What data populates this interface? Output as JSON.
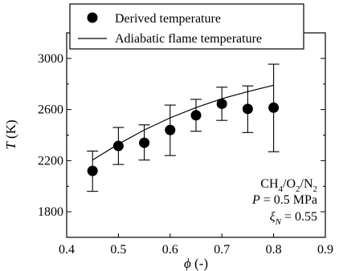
{
  "chart_data": {
    "type": "scatter",
    "xlabel": {
      "symbol": "ϕ",
      "unit": " (-)"
    },
    "ylabel": {
      "symbol": "T",
      "unit": " (K)"
    },
    "xlim": [
      0.4,
      0.9
    ],
    "ylim": [
      1600,
      3200
    ],
    "xticks": [
      0.4,
      0.5,
      0.6,
      0.7,
      0.8,
      0.9
    ],
    "xtick_labels": [
      "0.4",
      "0.5",
      "0.6",
      "0.7",
      "0.8",
      "0.9"
    ],
    "yticks": [
      1800,
      2200,
      2600,
      3000
    ],
    "ytick_labels": [
      "1800",
      "2200",
      "2600",
      "3000"
    ],
    "grid": false,
    "legend_position": "top",
    "series": [
      {
        "name": "Derived temperature",
        "kind": "points_with_errorbars",
        "x": [
          0.45,
          0.5,
          0.55,
          0.6,
          0.65,
          0.7,
          0.75,
          0.8
        ],
        "y": [
          2120,
          2315,
          2340,
          2440,
          2555,
          2645,
          2605,
          2615
        ],
        "y_low": [
          1960,
          2170,
          2205,
          2240,
          2430,
          2515,
          2420,
          2270
        ],
        "y_high": [
          2275,
          2460,
          2480,
          2635,
          2680,
          2775,
          2785,
          2955
        ]
      },
      {
        "name": "Adiabatic flame temperature",
        "kind": "line",
        "x": [
          0.45,
          0.5,
          0.55,
          0.6,
          0.65,
          0.7,
          0.75,
          0.8
        ],
        "y": [
          2205,
          2330,
          2440,
          2535,
          2615,
          2685,
          2740,
          2790
        ]
      }
    ],
    "annotations": {
      "mixture": {
        "base1": "CH",
        "sub1": "4",
        "sep1": "/O",
        "sub2": "2",
        "sep2": "/N",
        "sub3": "2"
      },
      "pressure": {
        "symbol": "P",
        "rest": " = 0.5 MPa"
      },
      "xi": {
        "symbol": "ξ",
        "sub": "N",
        "rest": " = 0.55"
      }
    }
  }
}
